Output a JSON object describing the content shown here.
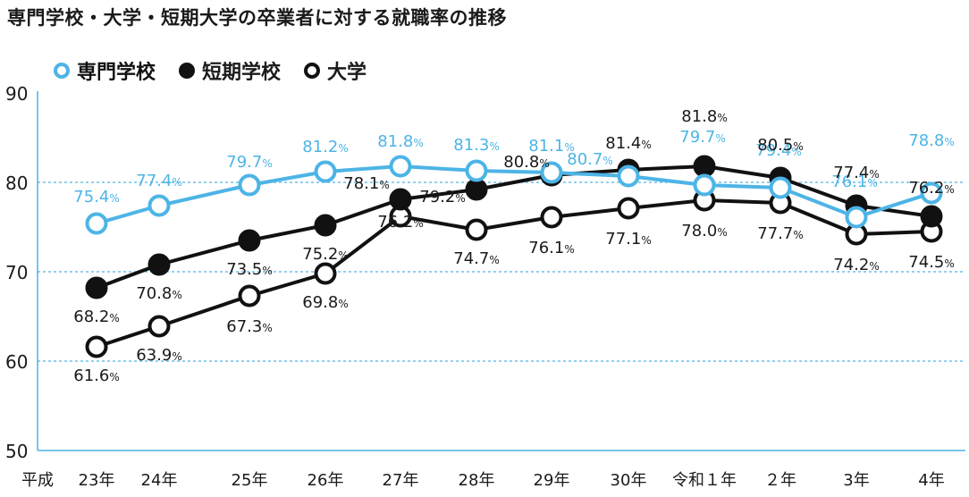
{
  "title": "専門学校・大学・短期大学の卒業者に対する就職率の推移",
  "chart_data": {
    "type": "line",
    "title": "専門学校・大学・短期大学の卒業者に対する就職率の推移",
    "era_label": "平成",
    "categories": [
      "23年",
      "24年",
      "25年",
      "26年",
      "27年",
      "28年",
      "29年",
      "30年",
      "令和１年",
      "２年",
      "3年",
      "4年"
    ],
    "ylim": [
      50,
      90
    ],
    "yticks": [
      50,
      60,
      70,
      80,
      90
    ],
    "grid": "dotted horizontal at 60, 70, 80",
    "legend_position": "top-left",
    "unit": "%",
    "series": [
      {
        "name": "専門学校",
        "color": "#4db4e6",
        "marker": "hollow",
        "values": [
          75.4,
          77.4,
          79.7,
          81.2,
          81.8,
          81.3,
          81.1,
          80.7,
          79.7,
          79.4,
          76.1,
          78.8
        ],
        "labels": [
          "75.4",
          "77.4",
          "79.7",
          "81.2",
          "81.8",
          "81.3",
          "81.1",
          "80.7",
          "79.7",
          "79.4",
          "76.1",
          "78.8"
        ]
      },
      {
        "name": "短期学校",
        "color": "#111111",
        "marker": "filled",
        "values": [
          68.2,
          70.8,
          73.5,
          75.2,
          78.1,
          79.2,
          80.8,
          81.4,
          81.8,
          80.5,
          77.4,
          76.2
        ],
        "labels": [
          "68.2",
          "70.8",
          "73.5",
          "75.2",
          "78.1",
          "79.2",
          "80.8",
          "81.4",
          "81.8",
          "80.5",
          "77.4",
          "76.2"
        ]
      },
      {
        "name": "大学",
        "color": "#111111",
        "marker": "hollow",
        "values": [
          61.6,
          63.9,
          67.3,
          69.8,
          76.2,
          74.7,
          76.1,
          77.1,
          78.0,
          77.7,
          74.2,
          74.5
        ],
        "labels": [
          "61.6",
          "63.9",
          "67.3",
          "69.8",
          "76.2",
          "74.7",
          "76.1",
          "77.1",
          "78.0",
          "77.7",
          "74.2",
          "74.5"
        ]
      }
    ]
  }
}
